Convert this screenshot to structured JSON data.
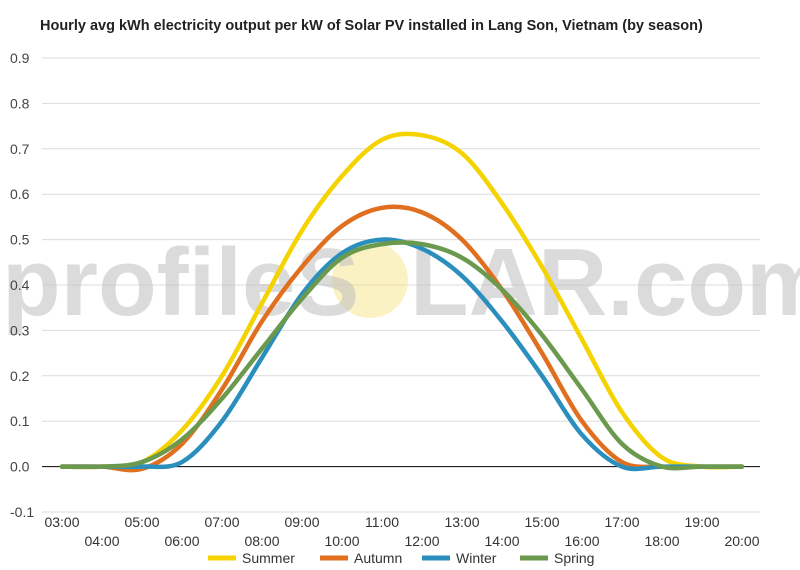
{
  "chart_data": {
    "type": "line",
    "title": "Hourly avg kWh electricity output per kW of Solar PV installed in Lang Son, Vietnam (by season)",
    "xlabel": "",
    "ylabel": "",
    "ylim": [
      -0.1,
      0.9
    ],
    "yticks": [
      "0.9",
      "0.8",
      "0.7",
      "0.6",
      "0.5",
      "0.4",
      "0.3",
      "0.2",
      "0.1",
      "0.0",
      "-0.1"
    ],
    "categories": [
      "03:00",
      "04:00",
      "05:00",
      "06:00",
      "07:00",
      "08:00",
      "09:00",
      "10:00",
      "11:00",
      "12:00",
      "13:00",
      "14:00",
      "15:00",
      "16:00",
      "17:00",
      "18:00",
      "19:00",
      "20:00"
    ],
    "grid": true,
    "legend_position": "bottom",
    "series": [
      {
        "name": "Summer",
        "color": "#f5d300",
        "values": [
          0.0,
          0.0,
          0.01,
          0.08,
          0.2,
          0.36,
          0.52,
          0.64,
          0.72,
          0.73,
          0.69,
          0.58,
          0.44,
          0.28,
          0.12,
          0.02,
          0.0,
          0.0
        ]
      },
      {
        "name": "Autumn",
        "color": "#e07020",
        "values": [
          0.0,
          0.0,
          -0.005,
          0.05,
          0.17,
          0.32,
          0.44,
          0.53,
          0.57,
          0.56,
          0.5,
          0.39,
          0.25,
          0.1,
          0.01,
          0.0,
          0.0,
          0.0
        ]
      },
      {
        "name": "Winter",
        "color": "#2a8fbd",
        "values": [
          0.0,
          0.0,
          0.0,
          0.01,
          0.1,
          0.24,
          0.38,
          0.47,
          0.5,
          0.48,
          0.42,
          0.32,
          0.2,
          0.07,
          0.0,
          0.0,
          0.0,
          0.0
        ]
      },
      {
        "name": "Spring",
        "color": "#6b9a4e",
        "values": [
          0.0,
          0.0,
          0.01,
          0.06,
          0.15,
          0.26,
          0.37,
          0.46,
          0.49,
          0.49,
          0.46,
          0.39,
          0.29,
          0.17,
          0.05,
          0.0,
          0.0,
          0.0
        ]
      }
    ]
  },
  "watermark": {
    "text_left": "profileS",
    "text_right": "LAR.com",
    "sun_color": "#f7e27a"
  }
}
